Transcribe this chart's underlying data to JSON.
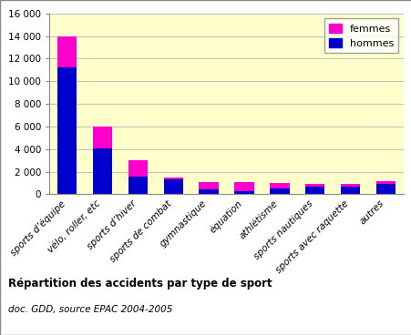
{
  "categories": [
    "sports d’équipe",
    "vélo, roller, etc",
    "sports d’hiver",
    "sports de combat",
    "gymnastique",
    "équation",
    "athlétisme",
    "sports nautiques",
    "sports avec raquette",
    "autres"
  ],
  "hommes": [
    11200,
    4100,
    1600,
    1300,
    400,
    300,
    500,
    700,
    700,
    900
  ],
  "femmes": [
    2800,
    1900,
    1400,
    200,
    700,
    800,
    500,
    200,
    200,
    300
  ],
  "color_hommes": "#0000CD",
  "color_femmes": "#FF00CC",
  "bg_color": "#FFFFCC",
  "fig_bg": "#FFFFFF",
  "title": "Répartition des accidents par type de sport",
  "subtitle": "doc. GDD, source EPAC 2004-2005",
  "ylim": [
    0,
    16000
  ],
  "yticks": [
    0,
    2000,
    4000,
    6000,
    8000,
    10000,
    12000,
    14000,
    16000
  ],
  "legend_femmes": "femmes",
  "legend_hommes": "hommes",
  "bar_width": 0.55
}
